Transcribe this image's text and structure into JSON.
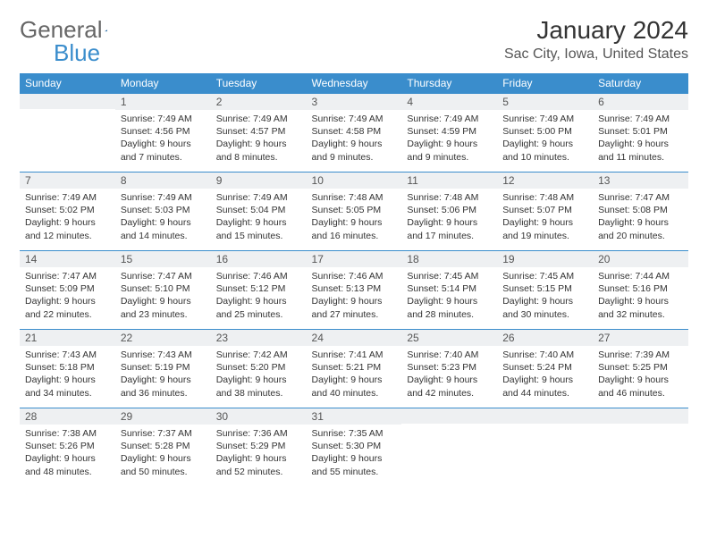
{
  "logo": {
    "text1": "General",
    "text2": "Blue"
  },
  "title": "January 2024",
  "location": "Sac City, Iowa, United States",
  "colors": {
    "header_bg": "#3a8dcc",
    "header_text": "#ffffff",
    "daynum_bg": "#eef0f2",
    "border": "#3a8dcc",
    "body_text": "#333333",
    "page_bg": "#ffffff"
  },
  "font": {
    "family": "Arial",
    "th_size": 12,
    "cell_size": 10.5,
    "title_size": 28,
    "loc_size": 16
  },
  "day_headers": [
    "Sunday",
    "Monday",
    "Tuesday",
    "Wednesday",
    "Thursday",
    "Friday",
    "Saturday"
  ],
  "weeks": [
    [
      {
        "n": "",
        "sr": "",
        "ss": "",
        "dl": ""
      },
      {
        "n": "1",
        "sr": "Sunrise: 7:49 AM",
        "ss": "Sunset: 4:56 PM",
        "dl": "Daylight: 9 hours and 7 minutes."
      },
      {
        "n": "2",
        "sr": "Sunrise: 7:49 AM",
        "ss": "Sunset: 4:57 PM",
        "dl": "Daylight: 9 hours and 8 minutes."
      },
      {
        "n": "3",
        "sr": "Sunrise: 7:49 AM",
        "ss": "Sunset: 4:58 PM",
        "dl": "Daylight: 9 hours and 9 minutes."
      },
      {
        "n": "4",
        "sr": "Sunrise: 7:49 AM",
        "ss": "Sunset: 4:59 PM",
        "dl": "Daylight: 9 hours and 9 minutes."
      },
      {
        "n": "5",
        "sr": "Sunrise: 7:49 AM",
        "ss": "Sunset: 5:00 PM",
        "dl": "Daylight: 9 hours and 10 minutes."
      },
      {
        "n": "6",
        "sr": "Sunrise: 7:49 AM",
        "ss": "Sunset: 5:01 PM",
        "dl": "Daylight: 9 hours and 11 minutes."
      }
    ],
    [
      {
        "n": "7",
        "sr": "Sunrise: 7:49 AM",
        "ss": "Sunset: 5:02 PM",
        "dl": "Daylight: 9 hours and 12 minutes."
      },
      {
        "n": "8",
        "sr": "Sunrise: 7:49 AM",
        "ss": "Sunset: 5:03 PM",
        "dl": "Daylight: 9 hours and 14 minutes."
      },
      {
        "n": "9",
        "sr": "Sunrise: 7:49 AM",
        "ss": "Sunset: 5:04 PM",
        "dl": "Daylight: 9 hours and 15 minutes."
      },
      {
        "n": "10",
        "sr": "Sunrise: 7:48 AM",
        "ss": "Sunset: 5:05 PM",
        "dl": "Daylight: 9 hours and 16 minutes."
      },
      {
        "n": "11",
        "sr": "Sunrise: 7:48 AM",
        "ss": "Sunset: 5:06 PM",
        "dl": "Daylight: 9 hours and 17 minutes."
      },
      {
        "n": "12",
        "sr": "Sunrise: 7:48 AM",
        "ss": "Sunset: 5:07 PM",
        "dl": "Daylight: 9 hours and 19 minutes."
      },
      {
        "n": "13",
        "sr": "Sunrise: 7:47 AM",
        "ss": "Sunset: 5:08 PM",
        "dl": "Daylight: 9 hours and 20 minutes."
      }
    ],
    [
      {
        "n": "14",
        "sr": "Sunrise: 7:47 AM",
        "ss": "Sunset: 5:09 PM",
        "dl": "Daylight: 9 hours and 22 minutes."
      },
      {
        "n": "15",
        "sr": "Sunrise: 7:47 AM",
        "ss": "Sunset: 5:10 PM",
        "dl": "Daylight: 9 hours and 23 minutes."
      },
      {
        "n": "16",
        "sr": "Sunrise: 7:46 AM",
        "ss": "Sunset: 5:12 PM",
        "dl": "Daylight: 9 hours and 25 minutes."
      },
      {
        "n": "17",
        "sr": "Sunrise: 7:46 AM",
        "ss": "Sunset: 5:13 PM",
        "dl": "Daylight: 9 hours and 27 minutes."
      },
      {
        "n": "18",
        "sr": "Sunrise: 7:45 AM",
        "ss": "Sunset: 5:14 PM",
        "dl": "Daylight: 9 hours and 28 minutes."
      },
      {
        "n": "19",
        "sr": "Sunrise: 7:45 AM",
        "ss": "Sunset: 5:15 PM",
        "dl": "Daylight: 9 hours and 30 minutes."
      },
      {
        "n": "20",
        "sr": "Sunrise: 7:44 AM",
        "ss": "Sunset: 5:16 PM",
        "dl": "Daylight: 9 hours and 32 minutes."
      }
    ],
    [
      {
        "n": "21",
        "sr": "Sunrise: 7:43 AM",
        "ss": "Sunset: 5:18 PM",
        "dl": "Daylight: 9 hours and 34 minutes."
      },
      {
        "n": "22",
        "sr": "Sunrise: 7:43 AM",
        "ss": "Sunset: 5:19 PM",
        "dl": "Daylight: 9 hours and 36 minutes."
      },
      {
        "n": "23",
        "sr": "Sunrise: 7:42 AM",
        "ss": "Sunset: 5:20 PM",
        "dl": "Daylight: 9 hours and 38 minutes."
      },
      {
        "n": "24",
        "sr": "Sunrise: 7:41 AM",
        "ss": "Sunset: 5:21 PM",
        "dl": "Daylight: 9 hours and 40 minutes."
      },
      {
        "n": "25",
        "sr": "Sunrise: 7:40 AM",
        "ss": "Sunset: 5:23 PM",
        "dl": "Daylight: 9 hours and 42 minutes."
      },
      {
        "n": "26",
        "sr": "Sunrise: 7:40 AM",
        "ss": "Sunset: 5:24 PM",
        "dl": "Daylight: 9 hours and 44 minutes."
      },
      {
        "n": "27",
        "sr": "Sunrise: 7:39 AM",
        "ss": "Sunset: 5:25 PM",
        "dl": "Daylight: 9 hours and 46 minutes."
      }
    ],
    [
      {
        "n": "28",
        "sr": "Sunrise: 7:38 AM",
        "ss": "Sunset: 5:26 PM",
        "dl": "Daylight: 9 hours and 48 minutes."
      },
      {
        "n": "29",
        "sr": "Sunrise: 7:37 AM",
        "ss": "Sunset: 5:28 PM",
        "dl": "Daylight: 9 hours and 50 minutes."
      },
      {
        "n": "30",
        "sr": "Sunrise: 7:36 AM",
        "ss": "Sunset: 5:29 PM",
        "dl": "Daylight: 9 hours and 52 minutes."
      },
      {
        "n": "31",
        "sr": "Sunrise: 7:35 AM",
        "ss": "Sunset: 5:30 PM",
        "dl": "Daylight: 9 hours and 55 minutes."
      },
      {
        "n": "",
        "sr": "",
        "ss": "",
        "dl": ""
      },
      {
        "n": "",
        "sr": "",
        "ss": "",
        "dl": ""
      },
      {
        "n": "",
        "sr": "",
        "ss": "",
        "dl": ""
      }
    ]
  ]
}
